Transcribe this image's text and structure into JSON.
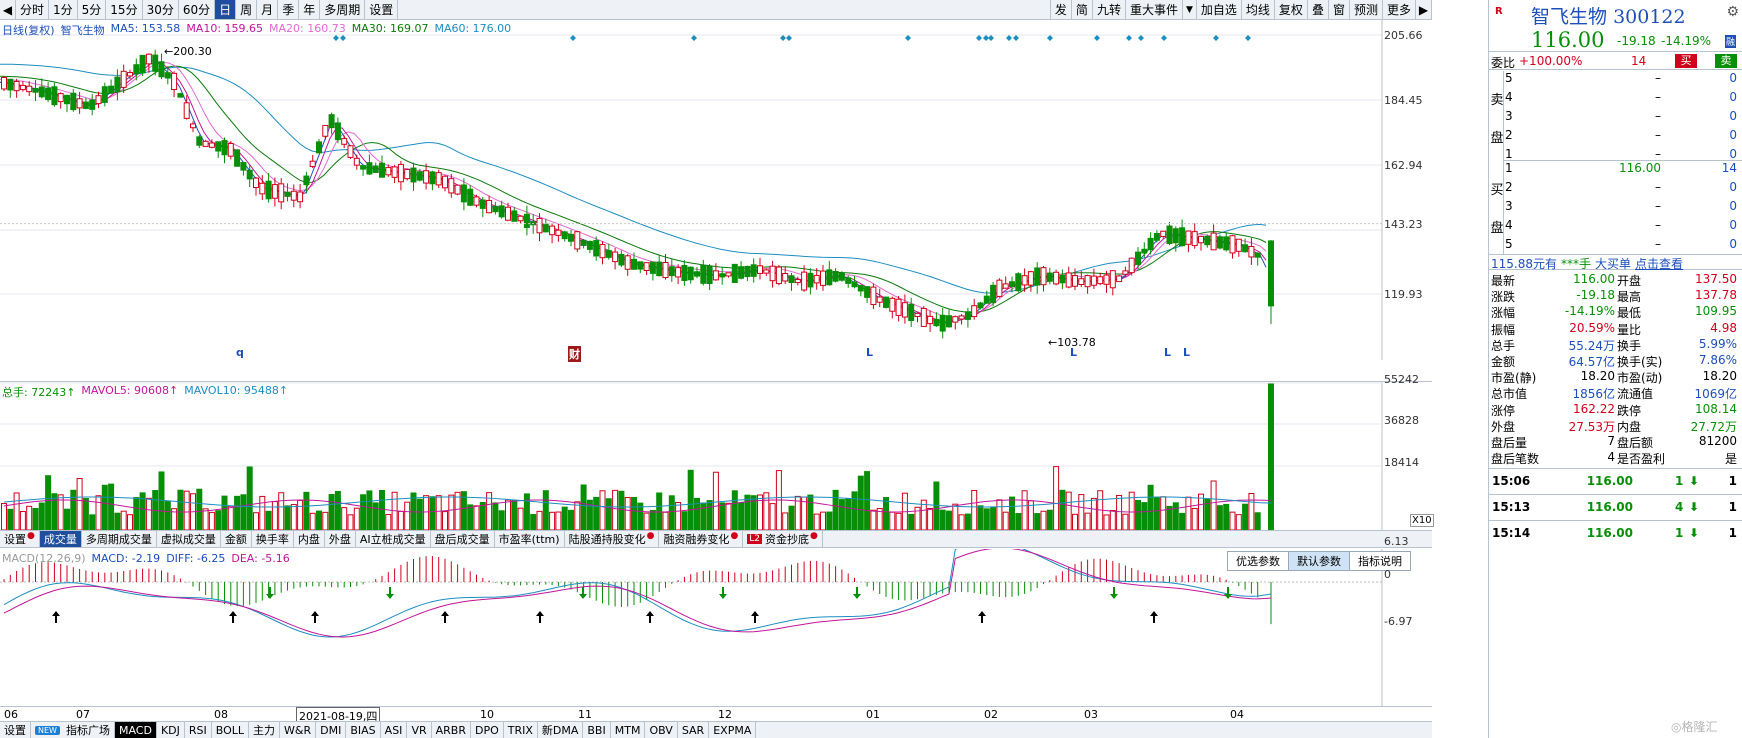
{
  "toolbar": {
    "periods": [
      "分时",
      "1分",
      "5分",
      "15分",
      "30分",
      "60分",
      "日",
      "周",
      "月",
      "季",
      "年",
      "多周期",
      "设置"
    ],
    "active_period": "日",
    "right_buttons": [
      "发",
      "简",
      "九转",
      "重大事件",
      "加自选",
      "均线",
      "复权",
      "叠",
      "窗",
      "预测",
      "更多"
    ]
  },
  "main": {
    "legend": [
      {
        "text": "日线(复权)",
        "color": "#1c4fb8"
      },
      {
        "text": "智飞生物",
        "color": "#1c4fb8"
      },
      {
        "text": "MA5: 153.58",
        "color": "#1c4fb8"
      },
      {
        "text": "MA10: 159.65",
        "color": "#c0169a"
      },
      {
        "text": "MA20: 160.73",
        "color": "#e26ad1"
      },
      {
        "text": "MA30: 169.07",
        "color": "#0b7a0b"
      },
      {
        "text": "MA60: 176.00",
        "color": "#1c8ec0"
      }
    ],
    "price_labels": [
      "205.66",
      "184.45",
      "162.94",
      "143.23",
      "119.93"
    ],
    "high_marker": "200.30",
    "low_marker": "103.78",
    "event_letters": [
      {
        "text": "q",
        "color": "#1c4fb8"
      },
      {
        "text": "财",
        "color": "#ffffff"
      },
      {
        "text": "L",
        "color": "#1c4fb8"
      },
      {
        "text": "L",
        "color": "#1c4fb8"
      },
      {
        "text": "L",
        "color": "#1c4fb8"
      },
      {
        "text": "L",
        "color": "#1c4fb8"
      }
    ]
  },
  "volume": {
    "legend": [
      {
        "text": "总手: 72243↑",
        "color": "#078f07"
      },
      {
        "text": "MAVOL5: 90608↑",
        "color": "#c0169a"
      },
      {
        "text": "MAVOL10: 95488↑",
        "color": "#1c8ec0"
      }
    ],
    "axis_labels": [
      "55242",
      "36828",
      "18414"
    ],
    "unit": "X10"
  },
  "indicator_tabs": [
    {
      "label": "设置",
      "dot": true
    },
    {
      "label": "成交量",
      "dot": false,
      "active": true
    },
    {
      "label": "多周期成交量",
      "dot": false
    },
    {
      "label": "虚拟成交量",
      "dot": false
    },
    {
      "label": "金额",
      "dot": false
    },
    {
      "label": "换手率",
      "dot": false
    },
    {
      "label": "内盘",
      "dot": false
    },
    {
      "label": "外盘",
      "dot": false
    },
    {
      "label": "AI立桩成交量",
      "dot": false
    },
    {
      "label": "盘后成交量",
      "dot": false
    },
    {
      "label": "市盈率(ttm)",
      "dot": false
    },
    {
      "label": "陆股通持股变化",
      "dot": true
    },
    {
      "label": "融资融券变化",
      "dot": true
    },
    {
      "label": "资金抄底",
      "dot": true
    }
  ],
  "l2_badge": "L2",
  "macd": {
    "legend": [
      {
        "text": "MACD(12,26,9)",
        "color": "#9a9a9a"
      },
      {
        "text": "MACD: -2.19",
        "color": "#1c4fb8"
      },
      {
        "text": "DIFF: -6.25",
        "color": "#1c4fb8"
      },
      {
        "text": "DEA: -5.16",
        "color": "#c0169a"
      }
    ],
    "param_buttons": [
      "优选参数",
      "默认参数",
      "指标说明"
    ],
    "axis_labels": [
      "6.13",
      "0",
      "-6.97"
    ]
  },
  "date_axis": {
    "months": [
      "06",
      "07",
      "08",
      "10",
      "11",
      "12",
      "01",
      "02",
      "03",
      "04"
    ],
    "cursor_date": "2021-08-19,四"
  },
  "bottom_tabs": [
    "设置",
    "NEW",
    "指标广场",
    "MACD",
    "KDJ",
    "RSI",
    "BOLL",
    "主力",
    "W&R",
    "DMI",
    "BIAS",
    "ASI",
    "VR",
    "ARBR",
    "DPO",
    "TRIX",
    "新DMA",
    "BBI",
    "MTM",
    "OBV",
    "SAR",
    "EXPMA"
  ],
  "active_bottom_tab": "MACD",
  "quote": {
    "logo": "R",
    "name": "智飞生物",
    "code": "300122",
    "price": "116.00",
    "change": "-19.18",
    "change_pct": "-14.19%",
    "flag": "融",
    "weibi_label": "委比",
    "weibi_value": "+100.00%",
    "weibi_count": "14",
    "buy_btn": "买",
    "sell_btn": "卖",
    "sell_side_label": [
      "卖",
      "盘"
    ],
    "buy_side_label": [
      "买",
      "盘"
    ],
    "sell_levels": [
      {
        "lvl": "5",
        "price": "–",
        "vol": "0"
      },
      {
        "lvl": "4",
        "price": "–",
        "vol": "0"
      },
      {
        "lvl": "3",
        "price": "–",
        "vol": "0"
      },
      {
        "lvl": "2",
        "price": "–",
        "vol": "0"
      },
      {
        "lvl": "1",
        "price": "–",
        "vol": "0"
      }
    ],
    "buy_levels": [
      {
        "lvl": "1",
        "price": "116.00",
        "vol": "14"
      },
      {
        "lvl": "2",
        "price": "–",
        "vol": "0"
      },
      {
        "lvl": "3",
        "price": "–",
        "vol": "0"
      },
      {
        "lvl": "4",
        "price": "–",
        "vol": "0"
      },
      {
        "lvl": "5",
        "price": "–",
        "vol": "0"
      }
    ],
    "big_order": [
      "115.88元有",
      "***手",
      "大买单",
      "点击查看"
    ],
    "stats": [
      {
        "l1": "最新",
        "v1": "116.00",
        "c1": "#078f07",
        "l2": "开盘",
        "v2": "137.50",
        "c2": "#d0021b"
      },
      {
        "l1": "涨跌",
        "v1": "-19.18",
        "c1": "#078f07",
        "l2": "最高",
        "v2": "137.78",
        "c2": "#d0021b"
      },
      {
        "l1": "涨幅",
        "v1": "-14.19%",
        "c1": "#078f07",
        "l2": "最低",
        "v2": "109.95",
        "c2": "#078f07"
      },
      {
        "l1": "振幅",
        "v1": "20.59%",
        "c1": "#d0021b",
        "l2": "量比",
        "v2": "4.98",
        "c2": "#d0021b"
      },
      {
        "l1": "总手",
        "v1": "55.24万",
        "c1": "#1c4fb8",
        "l2": "换手",
        "v2": "5.99%",
        "c2": "#1c4fb8"
      },
      {
        "l1": "金额",
        "v1": "64.57亿",
        "c1": "#1c4fb8",
        "l2": "换手(实)",
        "v2": "7.86%",
        "c2": "#1c4fb8"
      },
      {
        "l1": "市盈(静)",
        "v1": "18.20",
        "c1": "#000000",
        "l2": "市盈(动)",
        "v2": "18.20",
        "c2": "#000000"
      },
      {
        "l1": "总市值",
        "v1": "1856亿",
        "c1": "#1c4fb8",
        "l2": "流通值",
        "v2": "1069亿",
        "c2": "#1c4fb8"
      },
      {
        "l1": "涨停",
        "v1": "162.22",
        "c1": "#d0021b",
        "l2": "跌停",
        "v2": "108.14",
        "c2": "#078f07"
      },
      {
        "l1": "外盘",
        "v1": "27.53万",
        "c1": "#d0021b",
        "l2": "内盘",
        "v2": "27.72万",
        "c2": "#078f07"
      },
      {
        "l1": "盘后量",
        "v1": "7",
        "c1": "#000000",
        "l2": "盘后额",
        "v2": "81200",
        "c2": "#000000"
      },
      {
        "l1": "盘后笔数",
        "v1": "4",
        "c1": "#000000",
        "l2": "是否盈利",
        "v2": "是",
        "c2": "#000000"
      }
    ],
    "ticks": [
      {
        "time": "15:06",
        "price": "116.00",
        "vol": "1",
        "n": "1"
      },
      {
        "time": "15:13",
        "price": "116.00",
        "vol": "4",
        "n": "1"
      },
      {
        "time": "15:14",
        "price": "116.00",
        "vol": "1",
        "n": "1"
      }
    ],
    "watermark": "格隆汇"
  },
  "colors": {
    "up": "#d0021b",
    "down": "#078f07",
    "ma5": "#1c4fb8",
    "ma10": "#c0169a",
    "ma20": "#e26ad1",
    "ma30": "#0b7a0b",
    "ma60": "#1c8ec0",
    "diamond": "#1c8ec0"
  }
}
